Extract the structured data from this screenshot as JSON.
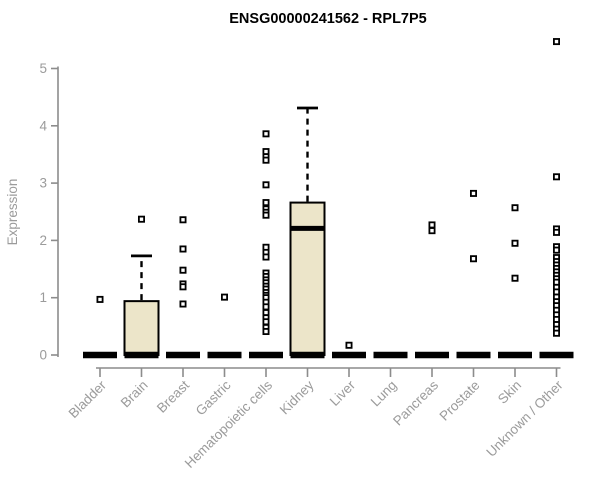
{
  "chart_data": {
    "type": "boxplot",
    "title": "ENSG00000241562 - RPL7P5",
    "ylabel": "Expression",
    "xlabel": "",
    "ylim": [
      0,
      5.5
    ],
    "yticks": [
      0,
      1,
      2,
      3,
      4,
      5
    ],
    "grid": false,
    "legend": "none",
    "colors": {
      "box_fill": "#ece5c9",
      "box_stroke": "#000000",
      "axis": "#8c8c8c",
      "tick_label": "#9b9b9b",
      "title": "#000000",
      "outlier": "#000000"
    },
    "categories": [
      "Bladder",
      "Brain",
      "Breast",
      "Gastric",
      "Hematopoietic cells",
      "Kidney",
      "Liver",
      "Lung",
      "Pancreas",
      "Prostate",
      "Skin",
      "Unknown / Other"
    ],
    "series": [
      {
        "name": "Bladder",
        "q1": 0,
        "median": 0,
        "q3": 0,
        "whisker_low": 0,
        "whisker_high": 0,
        "outliers": [
          0.97
        ]
      },
      {
        "name": "Brain",
        "q1": 0,
        "median": 0,
        "q3": 0.94,
        "whisker_low": 0,
        "whisker_high": 1.73,
        "outliers": [
          2.37
        ]
      },
      {
        "name": "Breast",
        "q1": 0,
        "median": 0,
        "q3": 0,
        "whisker_low": 0,
        "whisker_high": 0,
        "outliers": [
          2.36,
          1.85,
          1.48,
          1.24,
          1.19,
          0.89
        ]
      },
      {
        "name": "Gastric",
        "q1": 0,
        "median": 0,
        "q3": 0,
        "whisker_low": 0,
        "whisker_high": 0,
        "outliers": [
          1.01
        ]
      },
      {
        "name": "Hematopoietic cells",
        "q1": 0,
        "median": 0,
        "q3": 0,
        "whisker_low": 0,
        "whisker_high": 0,
        "outliers": [
          3.86,
          3.55,
          3.46,
          3.4,
          2.97,
          2.66,
          2.55,
          2.49,
          2.44,
          1.88,
          1.79,
          1.71,
          1.43,
          1.37,
          1.31,
          1.26,
          1.2,
          1.15,
          1.09,
          1.04,
          1.0,
          0.92,
          0.84,
          0.74,
          0.65,
          0.58,
          0.48,
          0.41
        ]
      },
      {
        "name": "Kidney",
        "q1": 0,
        "median": 2.21,
        "q3": 2.66,
        "whisker_low": 0,
        "whisker_high": 4.31,
        "outliers": []
      },
      {
        "name": "Liver",
        "q1": 0,
        "median": 0,
        "q3": 0,
        "whisker_low": 0,
        "whisker_high": 0,
        "outliers": [
          0.17
        ]
      },
      {
        "name": "Lung",
        "q1": 0,
        "median": 0,
        "q3": 0,
        "whisker_low": 0,
        "whisker_high": 0,
        "outliers": []
      },
      {
        "name": "Pancreas",
        "q1": 0,
        "median": 0,
        "q3": 0,
        "whisker_low": 0,
        "whisker_high": 0,
        "outliers": [
          2.27,
          2.17
        ]
      },
      {
        "name": "Prostate",
        "q1": 0,
        "median": 0,
        "q3": 0,
        "whisker_low": 0,
        "whisker_high": 0,
        "outliers": [
          2.82,
          1.68
        ]
      },
      {
        "name": "Skin",
        "q1": 0,
        "median": 0,
        "q3": 0,
        "whisker_low": 0,
        "whisker_high": 0,
        "outliers": [
          2.57,
          1.95,
          1.34
        ]
      },
      {
        "name": "Unknown / Other",
        "q1": 0,
        "median": 0,
        "q3": 0,
        "whisker_low": 0,
        "whisker_high": 0,
        "outliers": [
          5.47,
          3.11,
          2.2,
          2.14,
          1.89,
          1.83,
          1.7,
          1.63,
          1.57,
          1.51,
          1.45,
          1.39,
          1.33,
          1.27,
          1.18,
          1.1,
          1.01,
          0.93,
          0.86,
          0.78,
          0.7,
          0.62,
          0.53,
          0.45,
          0.38
        ]
      }
    ]
  }
}
